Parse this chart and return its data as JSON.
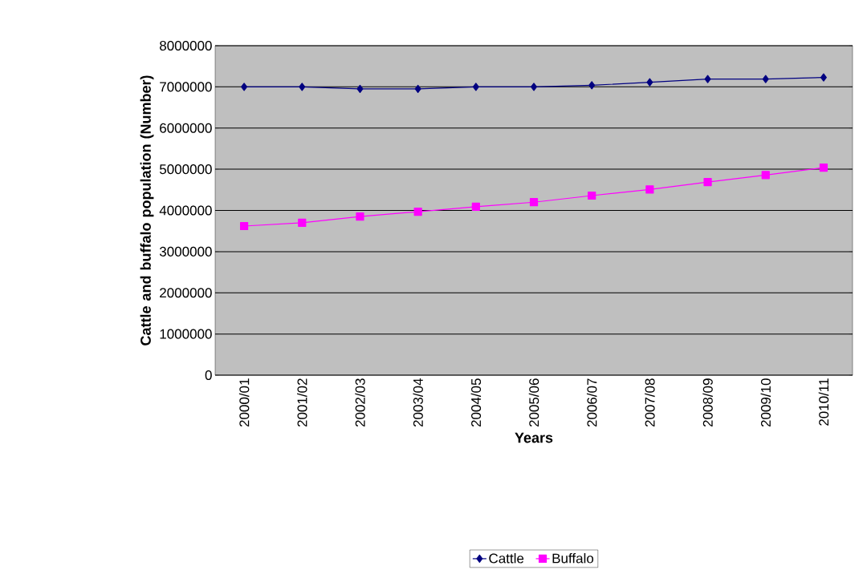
{
  "chart_data": {
    "type": "line",
    "xlabel": "Years",
    "ylabel": "Cattle and buffalo population (Number)",
    "categories": [
      "2000/01",
      "2001/02",
      "2002/03",
      "2003/04",
      "2004/05",
      "2005/06",
      "2006/07",
      "2007/08",
      "2008/09",
      "2009/10",
      "2010/11"
    ],
    "series": [
      {
        "name": "Cattle",
        "color": "#000080",
        "marker": "diamond",
        "values": [
          7000000,
          7000000,
          6950000,
          6950000,
          7000000,
          7000000,
          7040000,
          7110000,
          7190000,
          7190000,
          7230000
        ]
      },
      {
        "name": "Buffalo",
        "color": "#ff00ff",
        "marker": "square",
        "values": [
          3620000,
          3700000,
          3850000,
          3970000,
          4090000,
          4200000,
          4360000,
          4510000,
          4690000,
          4860000,
          5040000
        ]
      }
    ],
    "ylim": [
      0,
      8000000
    ],
    "yticks": [
      0,
      1000000,
      2000000,
      3000000,
      4000000,
      5000000,
      6000000,
      7000000,
      8000000
    ],
    "grid": "y",
    "legend": "bottom",
    "line_style": "solid"
  }
}
